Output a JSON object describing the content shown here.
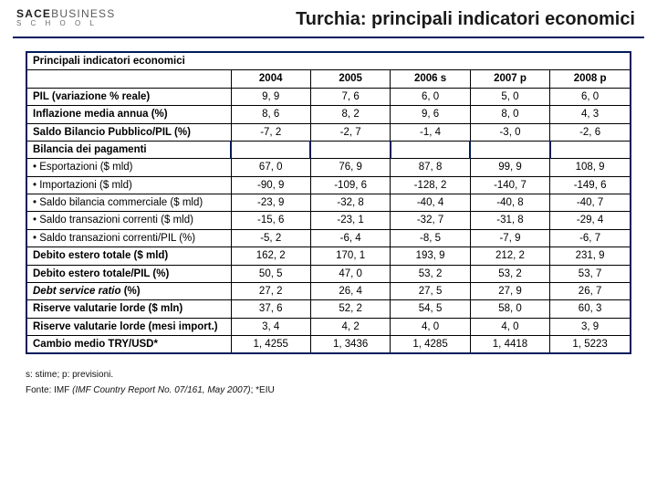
{
  "logo": {
    "top_bold": "SACE",
    "top_light": "BUSINESS",
    "bottom": "S C H O O L"
  },
  "title": "Turchia: principali indicatori economici",
  "table": {
    "main_header": "Principali indicatori economici",
    "col_headers": [
      "2004",
      "2005",
      "2006 s",
      "2007 p",
      "2008 p"
    ],
    "sections": [
      {
        "rows": [
          {
            "label": "PIL (variazione % reale)",
            "vals": [
              "9, 9",
              "7, 6",
              "6, 0",
              "5, 0",
              "6, 0"
            ],
            "bold_label": true
          },
          {
            "label": "Inflazione media annua (%)",
            "vals": [
              "8, 6",
              "8, 2",
              "9, 6",
              "8, 0",
              "4, 3"
            ],
            "bold_label": true
          },
          {
            "label": "Saldo Bilancio Pubblico/PIL (%)",
            "vals": [
              "-7, 2",
              "-2, 7",
              "-1, 4",
              "-3, 0",
              "-2, 6"
            ],
            "bold_label": true
          }
        ]
      },
      {
        "header": "Bilancia dei pagamenti",
        "rows": [
          {
            "label": "• Esportazioni ($ mld)",
            "vals": [
              "67, 0",
              "76, 9",
              "87, 8",
              "99, 9",
              "108, 9"
            ]
          },
          {
            "label": "• Importazioni ($ mld)",
            "vals": [
              "-90, 9",
              "-109, 6",
              "-128, 2",
              "-140, 7",
              "-149, 6"
            ]
          },
          {
            "label": "• Saldo bilancia commerciale ($ mld)",
            "vals": [
              "-23, 9",
              "-32, 8",
              "-40, 4",
              "-40, 8",
              "-40, 7"
            ]
          },
          {
            "label": "• Saldo transazioni correnti ($ mld)",
            "vals": [
              "-15, 6",
              "-23, 1",
              "-32, 7",
              "-31, 8",
              "-29, 4"
            ]
          },
          {
            "label": "• Saldo transazioni correnti/PIL (%)",
            "vals": [
              "-5, 2",
              "-6, 4",
              "-8, 5",
              "-7, 9",
              "-6, 7"
            ]
          }
        ]
      },
      {
        "rows": [
          {
            "label": "Debito estero totale ($ mld)",
            "vals": [
              "162, 2",
              "170, 1",
              "193, 9",
              "212, 2",
              "231, 9"
            ],
            "bold_label": true
          },
          {
            "label": "Debito estero totale/PIL (%)",
            "vals": [
              "50, 5",
              "47, 0",
              "53, 2",
              "53, 2",
              "53, 7"
            ],
            "bold_label": true
          },
          {
            "label_html": "<span class='italic'>Debt service ratio</span> (%)",
            "vals": [
              "27, 2",
              "26, 4",
              "27, 5",
              "27, 9",
              "26, 7"
            ],
            "bold_label": true
          },
          {
            "label": "Riserve valutarie lorde ($ mln)",
            "vals": [
              "37, 6",
              "52, 2",
              "54, 5",
              "58, 0",
              "60, 3"
            ],
            "bold_label": true
          },
          {
            "label": "Riserve valutarie lorde (mesi import.)",
            "vals": [
              "3, 4",
              "4, 2",
              "4, 0",
              "4, 0",
              "3, 9"
            ],
            "bold_label": true
          },
          {
            "label": "Cambio medio TRY/USD*",
            "vals": [
              "1, 4255",
              "1, 3436",
              "1, 4285",
              "1, 4418",
              "1, 5223"
            ],
            "bold_label": true
          }
        ]
      }
    ]
  },
  "footnotes": {
    "line1": "s: stime; p: previsioni.",
    "line2_html": "Fonte: IMF <span class='italic'>(IMF Country Report No. 07/161, May 2007)</span>; *EIU"
  },
  "colors": {
    "rule": "#001b5a",
    "text": "#111111",
    "bg": "#ffffff"
  }
}
